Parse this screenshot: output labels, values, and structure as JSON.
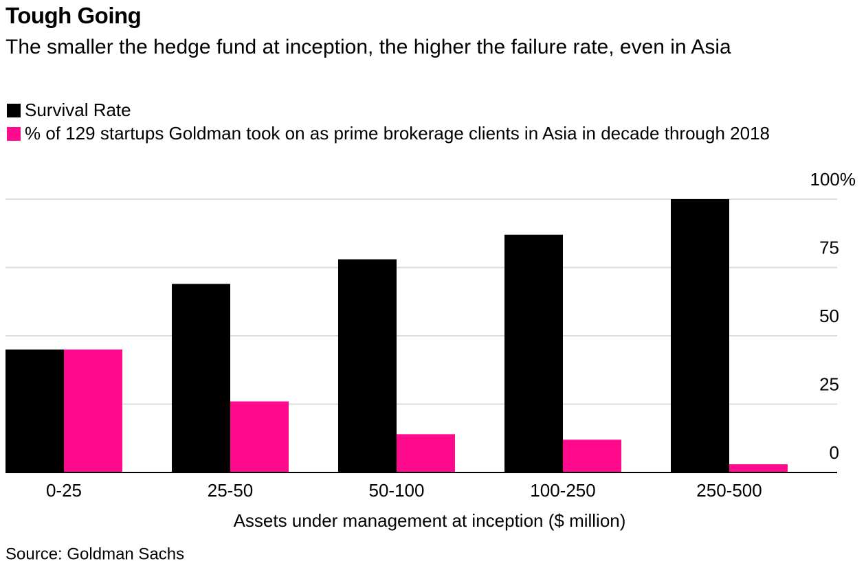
{
  "chart_data": {
    "type": "bar",
    "title": "Tough Going",
    "subtitle": "The smaller the hedge fund at inception, the higher the failure rate, even in Asia",
    "x_label": "Assets under management at inception ($ million)",
    "source": "Source: Goldman Sachs",
    "categories": [
      "0-25",
      "25-50",
      "50-100",
      "100-250",
      "250-500"
    ],
    "series": [
      {
        "name": "Survival Rate",
        "color": "#000000",
        "values": [
          45,
          69,
          78,
          87,
          100
        ]
      },
      {
        "name": "% of 129 startups Goldman took on as prime brokerage clients in Asia in decade through 2018",
        "color": "#ff0a8c",
        "values": [
          45,
          26,
          14,
          12,
          3
        ]
      }
    ],
    "ylim": [
      0,
      100
    ],
    "yticks": [
      0,
      25,
      50,
      75,
      {
        "value": 100,
        "label": "100%"
      }
    ],
    "grid": true
  }
}
